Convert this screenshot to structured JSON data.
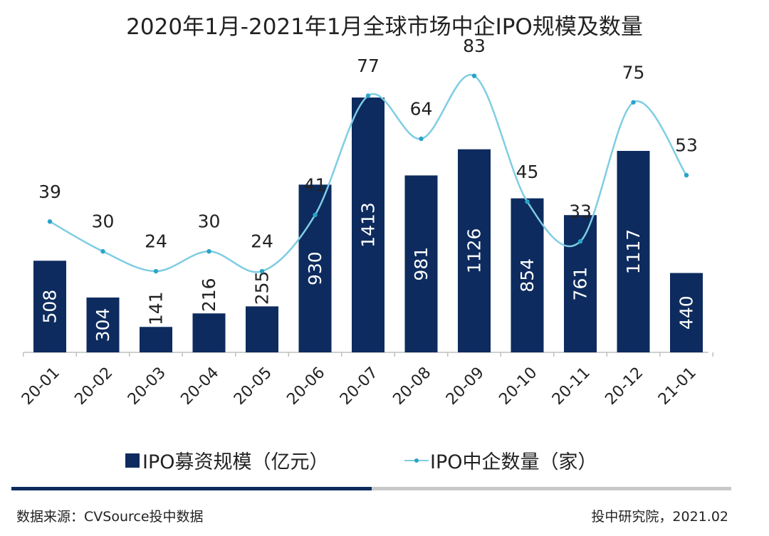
{
  "chart_data": {
    "type": "bar+line",
    "title": "2020年1月-2021年1月全球市场中企IPO规模及数量",
    "categories": [
      "20-01",
      "20-02",
      "20-03",
      "20-04",
      "20-05",
      "20-06",
      "20-07",
      "20-08",
      "20-09",
      "20-10",
      "20-11",
      "20-12",
      "21-01"
    ],
    "series": [
      {
        "name": "IPO募资规模（亿元）",
        "type": "bar",
        "values": [
          508,
          304,
          141,
          216,
          255,
          930,
          1413,
          981,
          1126,
          854,
          761,
          1117,
          440
        ]
      },
      {
        "name": "IPO中企数量（家）",
        "type": "line",
        "values": [
          39,
          30,
          24,
          30,
          24,
          41,
          77,
          64,
          83,
          45,
          33,
          75,
          53
        ]
      }
    ],
    "xlabel": "",
    "ylabel": "",
    "grid": false,
    "legend_position": "bottom",
    "colors": {
      "bar": "#0d2b5e",
      "line": "#7ecde3",
      "line_marker": "#2aa3c8"
    }
  },
  "footer": {
    "source": "数据来源：CVSource投中数据",
    "credit": "投中研究院，2021.02"
  }
}
